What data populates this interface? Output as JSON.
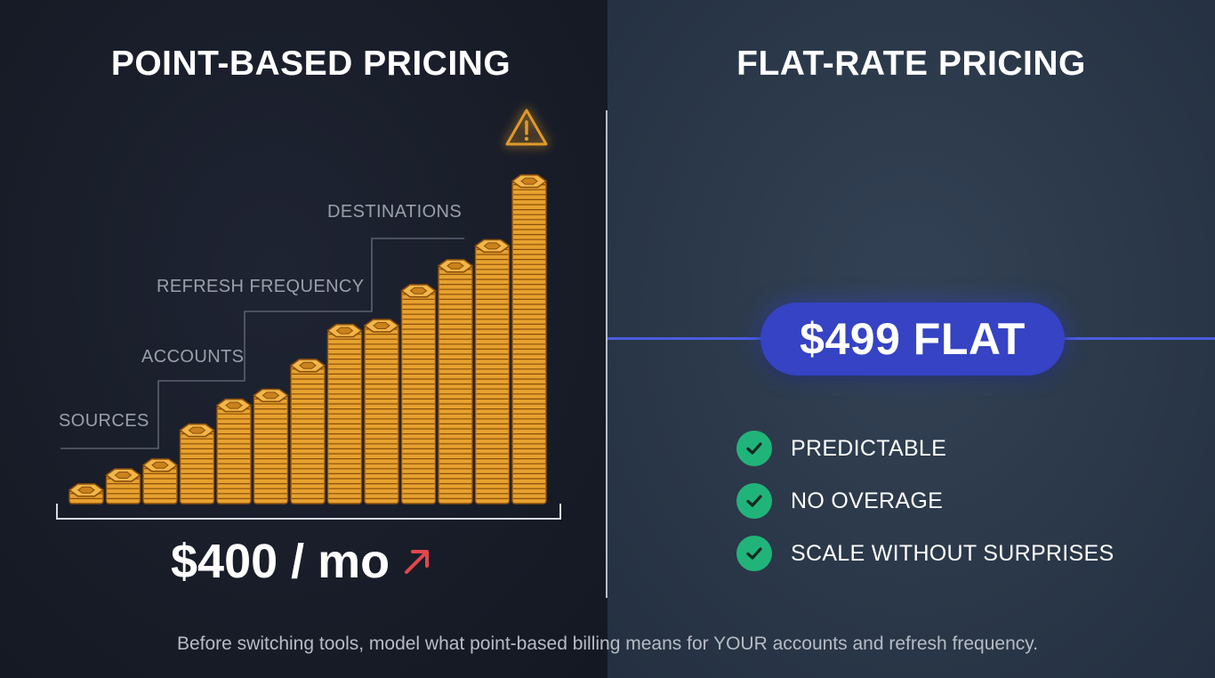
{
  "left": {
    "title": "POINT-BASED PRICING",
    "price": "$400 / mo",
    "trend_icon": "trend-up-arrow-icon",
    "warning_icon": "warning-triangle-icon"
  },
  "right": {
    "title": "FLAT-RATE PRICING",
    "flat_price": "$499 FLAT",
    "benefits": [
      {
        "label": "PREDICTABLE",
        "icon": "check-circle-icon"
      },
      {
        "label": "NO OVERAGE",
        "icon": "check-circle-icon"
      },
      {
        "label": "SCALE WITHOUT SURPRISES",
        "icon": "check-circle-icon"
      }
    ]
  },
  "footnote": "Before switching tools, model what point-based billing means for YOUR accounts and refresh frequency.",
  "colors": {
    "coin": "#e7a12e",
    "coin_dark": "#8a4f0c",
    "accent_blue": "#3543c4",
    "check_green": "#21b47a",
    "trend_red": "#e2474d",
    "warning": "#e09a2a"
  },
  "chart_data": {
    "type": "bar",
    "categories": [
      "",
      "",
      "",
      "",
      "",
      "",
      "",
      "",
      "",
      "",
      "",
      "",
      ""
    ],
    "values": [
      2,
      5,
      7,
      14,
      19,
      21,
      27,
      34,
      35,
      42,
      47,
      51,
      64
    ],
    "stage_labels": [
      "SOURCES",
      "ACCOUNTS",
      "REFRESH FREQUENCY",
      "DESTINATIONS"
    ],
    "xlabel": "",
    "ylabel": ""
  }
}
